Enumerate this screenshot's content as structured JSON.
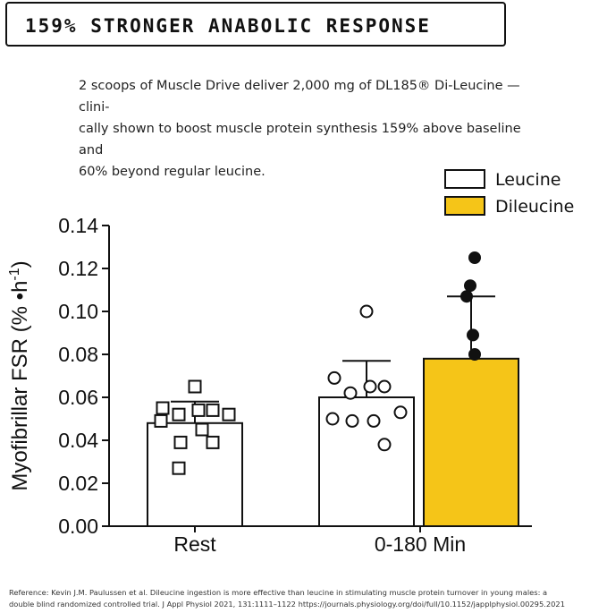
{
  "header": {
    "title": "159% STRONGER ANABOLIC RESPONSE"
  },
  "intro": {
    "line1": "2 scoops of Muscle Drive deliver 2,000 mg of DL185® Di-Leucine — clini-",
    "line2": "cally shown to boost muscle protein synthesis 159% above baseline and",
    "line3": "60% beyond regular leucine."
  },
  "chart_data": {
    "type": "bar",
    "categories": [
      "Rest",
      "0-180 Min"
    ],
    "ylabel_main": "Myofibrillar FSR (% •h",
    "ylabel_sup": "-1",
    "ylabel_close": ")",
    "ylim": [
      0,
      0.14
    ],
    "yticks": [
      "0.00",
      "0.02",
      "0.04",
      "0.06",
      "0.08",
      "0.10",
      "0.12",
      "0.14"
    ],
    "grid": false,
    "legend_placement": "top-right",
    "series": [
      {
        "name": "Leucine",
        "color": "#ffffff",
        "values": [
          0.048,
          0.06
        ],
        "error_upper": [
          0.058,
          0.077
        ],
        "points": [
          {
            "category": "Rest",
            "marker": "square",
            "values": [
              0.065,
              0.055,
              0.054,
              0.054,
              0.052,
              0.052,
              0.049,
              0.045,
              0.039,
              0.039,
              0.027
            ]
          },
          {
            "category": "0-180 Min",
            "marker": "circle-open",
            "values": [
              0.1,
              0.069,
              0.065,
              0.065,
              0.062,
              0.053,
              0.05,
              0.049,
              0.049,
              0.038
            ]
          }
        ]
      },
      {
        "name": "Dileucine",
        "color": "#f5c518",
        "values": [
          null,
          0.078
        ],
        "error_upper": [
          null,
          0.107
        ],
        "points": [
          {
            "category": "0-180 Min",
            "marker": "circle-filled",
            "values": [
              0.125,
              0.112,
              0.107,
              0.089,
              0.08
            ]
          }
        ]
      }
    ]
  },
  "reference": {
    "line1": "Reference: Kevin J.M. Paulussen et al. Dileucine ingestion is more effective than leucine in stimulating muscle protein turnover in young males: a",
    "line2": "double blind randomized controlled trial. J Appl Physiol 2021, 131:1111–1122 https://journals.physiology.org/doi/full/10.1152/japplphysiol.00295.2021"
  }
}
